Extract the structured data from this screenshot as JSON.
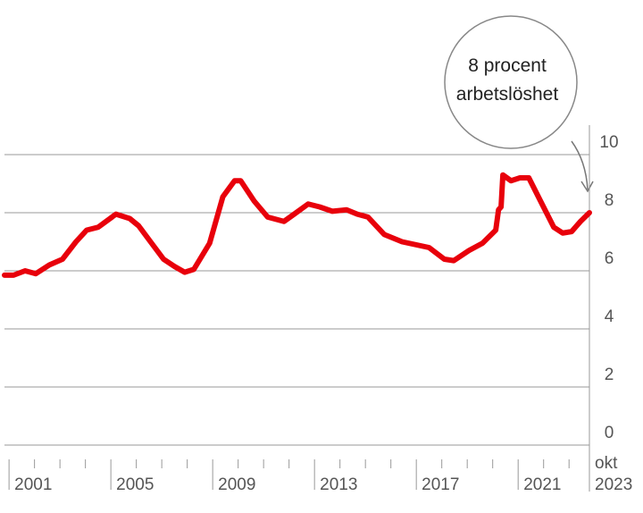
{
  "chart_data": {
    "type": "line",
    "x": [
      2000.82,
      2001.18,
      2001.63,
      2002.05,
      2002.58,
      2003.1,
      2003.63,
      2004.05,
      2004.5,
      2005.2,
      2005.74,
      2006.09,
      2006.6,
      2007.07,
      2007.5,
      2007.9,
      2008.26,
      2008.88,
      2009.4,
      2009.86,
      2010.1,
      2010.63,
      2011.16,
      2011.8,
      2012.2,
      2012.75,
      2013.2,
      2013.7,
      2014.26,
      2014.68,
      2015.1,
      2015.74,
      2016.44,
      2017.5,
      2018.1,
      2018.47,
      2019.07,
      2019.6,
      2020.12,
      2020.23,
      2020.33,
      2020.4,
      2020.72,
      2021.07,
      2021.42,
      2021.88,
      2022.4,
      2022.75,
      2023.1,
      2023.45,
      2023.8
    ],
    "series": [
      {
        "color": "#e8000b",
        "values": [
          5.85,
          5.85,
          6.0,
          5.9,
          6.2,
          6.4,
          7.0,
          7.4,
          7.5,
          7.95,
          7.8,
          7.55,
          6.95,
          6.4,
          6.15,
          5.95,
          6.05,
          6.95,
          8.55,
          9.1,
          9.1,
          8.4,
          7.85,
          7.7,
          7.95,
          8.3,
          8.2,
          8.05,
          8.1,
          7.95,
          7.85,
          7.25,
          7.0,
          6.8,
          6.4,
          6.35,
          6.7,
          6.95,
          7.4,
          8.1,
          8.2,
          9.3,
          9.1,
          9.2,
          9.2,
          8.4,
          7.5,
          7.3,
          7.35,
          7.7,
          8.0
        ]
      }
    ],
    "xlim": [
      2000.82,
      2023.8
    ],
    "xticks": [
      2001,
      2005,
      2009,
      2013,
      2017,
      2021
    ],
    "x_minor_ticks": [
      2002,
      2003,
      2004,
      2006,
      2007,
      2008,
      2010,
      2011,
      2012,
      2014,
      2015,
      2016,
      2018,
      2019,
      2020,
      2022,
      2023
    ],
    "end_label": [
      "okt",
      "2023"
    ],
    "ylim": [
      0,
      10
    ],
    "yticks": [
      0,
      2,
      4,
      6,
      8,
      10
    ],
    "grid": true,
    "annotation": [
      "8 procent",
      "arbetslöshet"
    ]
  }
}
